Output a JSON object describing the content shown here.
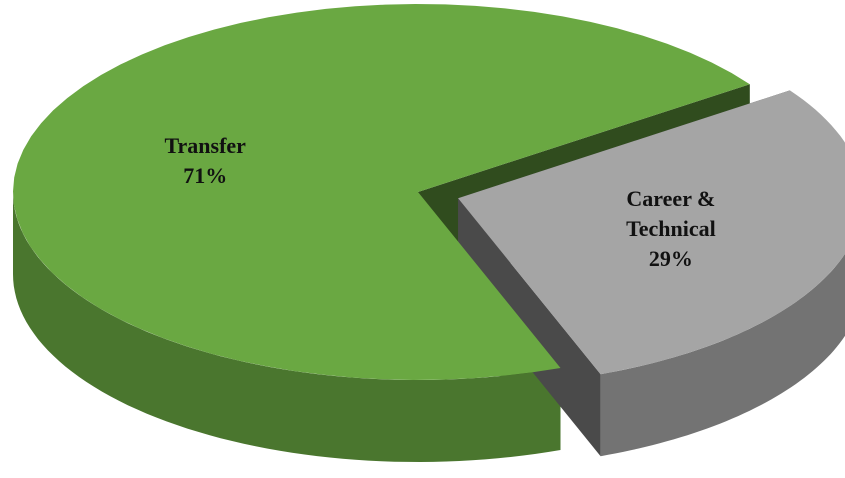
{
  "chart_data": {
    "type": "pie3d",
    "categories": [
      "Transfer",
      "Career & Technical"
    ],
    "values": [
      71,
      29
    ],
    "value_labels": [
      "71%",
      "29%"
    ],
    "colors": [
      "#6aa842",
      "#a5a5a5"
    ],
    "exploded": [
      false,
      true
    ]
  }
}
